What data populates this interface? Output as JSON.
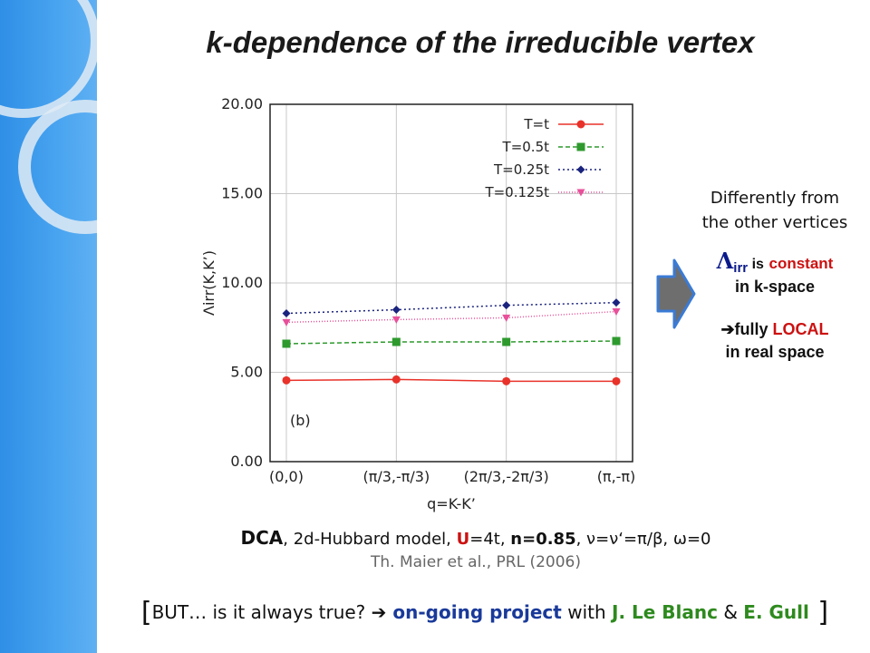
{
  "title": "k-dependence of the irreducible vertex",
  "chart_data": {
    "type": "line",
    "ylabel": "Λirr(K,K’)",
    "xlabel": "q=K-K’",
    "panel_label": "(b)",
    "categories": [
      "(0,0)",
      "(π/3,-π/3)",
      "(2π/3,-2π/3)",
      "(π,-π)"
    ],
    "ylim": [
      0,
      20
    ],
    "yticks": [
      "0.00",
      "5.00",
      "10.00",
      "15.00",
      "20.00"
    ],
    "grid": true,
    "legend_position": "top-right",
    "series": [
      {
        "name": "T=t",
        "values": [
          4.55,
          4.6,
          4.5,
          4.5
        ],
        "color": "#e8322a",
        "marker": "circle",
        "dash": "none"
      },
      {
        "name": "T=0.5t",
        "values": [
          6.6,
          6.7,
          6.7,
          6.75
        ],
        "color": "#2e9a2e",
        "marker": "square",
        "dash": "5,3"
      },
      {
        "name": "T=0.25t",
        "values": [
          8.3,
          8.5,
          8.75,
          8.9
        ],
        "color": "#1a237e",
        "marker": "diamond",
        "dash": "2,3"
      },
      {
        "name": "T=0.125t",
        "values": [
          7.8,
          7.95,
          8.05,
          8.4
        ],
        "color": "#e8509a",
        "marker": "triangle",
        "dash": "1,2"
      }
    ]
  },
  "side_note": {
    "line1": "Differently from",
    "line2": "the other vertices",
    "lambda": "Λ",
    "lambda_sub": "irr",
    "is_text": " is",
    "constant_text": "constant",
    "kspace_text": "in k-space",
    "arrow_symbol": "➔",
    "fully_text": "fully ",
    "local_text": "LOCAL",
    "real_space_text": "in real space"
  },
  "caption": {
    "dca": "DCA",
    "part1": ", 2d-Hubbard model, ",
    "u": "U",
    "part2": "=4t, ",
    "n": "n=0.85",
    "part3": ", ν=ν‘=π/β, ω=0",
    "reference": "Th. Maier et al.,  PRL (2006)"
  },
  "footer": {
    "open_bracket": "[",
    "but": "BUT…  is it always true? ",
    "arrow": "➔",
    "project": " on-going project",
    "with": " with ",
    "name1": "J. Le Blanc",
    "amp": " & ",
    "name2": "E. Gull",
    "close_bracket": " ]"
  },
  "colors": {
    "left_bar": "#3d9bec",
    "accent_red": "#cc1111",
    "accent_blue": "#1a3a9a",
    "accent_green": "#2e8a1e",
    "arrow_fill": "#6e6e6e",
    "arrow_stroke": "#3a7bd5"
  }
}
